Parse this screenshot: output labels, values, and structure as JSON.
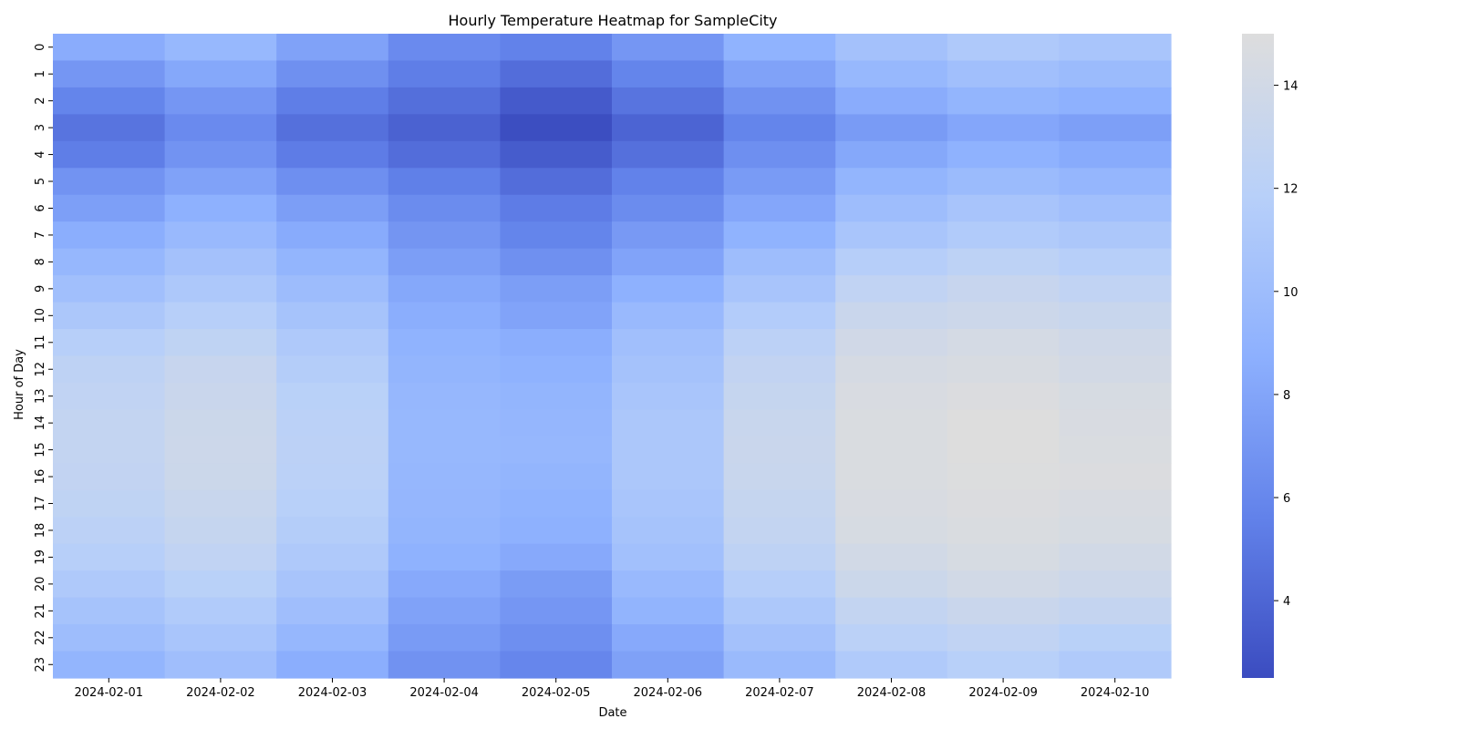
{
  "chart_data": {
    "type": "heatmap",
    "title": "Hourly Temperature Heatmap for SampleCity",
    "xlabel": "Date",
    "ylabel": "Hour of Day",
    "x": [
      "2024-02-01",
      "2024-02-02",
      "2024-02-03",
      "2024-02-04",
      "2024-02-05",
      "2024-02-06",
      "2024-02-07",
      "2024-02-08",
      "2024-02-09",
      "2024-02-10"
    ],
    "y": [
      "0",
      "1",
      "2",
      "3",
      "4",
      "5",
      "6",
      "7",
      "8",
      "9",
      "10",
      "11",
      "12",
      "13",
      "14",
      "15",
      "16",
      "17",
      "18",
      "19",
      "20",
      "21",
      "22",
      "23"
    ],
    "values": [
      [
        8.5,
        9.5,
        7.8,
        6.2,
        5.6,
        7.0,
        9.0,
        10.4,
        11.2,
        10.8
      ],
      [
        7.0,
        8.2,
        6.6,
        5.4,
        4.4,
        5.8,
        7.8,
        9.5,
        10.2,
        9.8
      ],
      [
        5.8,
        7.0,
        5.4,
        4.5,
        3.3,
        4.8,
        6.7,
        8.5,
        9.2,
        8.8
      ],
      [
        4.8,
        6.2,
        4.6,
        3.8,
        2.6,
        3.9,
        5.8,
        7.3,
        8.1,
        7.6
      ],
      [
        5.4,
        6.8,
        5.3,
        4.4,
        3.4,
        4.6,
        6.5,
        8.2,
        8.9,
        8.4
      ],
      [
        6.8,
        7.8,
        6.5,
        5.5,
        4.4,
        5.6,
        7.3,
        9.2,
        9.8,
        9.3
      ],
      [
        7.6,
        8.8,
        7.5,
        6.3,
        5.3,
        6.3,
        8.1,
        10.0,
        10.7,
        10.2
      ],
      [
        8.6,
        9.6,
        8.4,
        6.9,
        5.8,
        7.2,
        9.0,
        10.8,
        11.4,
        11.0
      ],
      [
        9.4,
        10.4,
        9.2,
        7.5,
        6.6,
        7.9,
        10.0,
        11.7,
        12.3,
        11.8
      ],
      [
        10.2,
        11.1,
        9.9,
        8.2,
        7.5,
        8.8,
        10.7,
        12.6,
        13.1,
        12.6
      ],
      [
        11.0,
        11.8,
        10.6,
        8.6,
        7.9,
        9.6,
        11.5,
        13.3,
        13.6,
        13.2
      ],
      [
        11.8,
        12.5,
        11.2,
        9.0,
        8.6,
        10.2,
        12.2,
        13.9,
        14.2,
        13.8
      ],
      [
        12.4,
        13.1,
        11.6,
        9.2,
        8.9,
        10.5,
        12.7,
        14.3,
        14.5,
        14.1
      ],
      [
        12.6,
        13.3,
        12.0,
        9.4,
        9.2,
        10.8,
        13.0,
        14.6,
        14.8,
        14.4
      ],
      [
        12.8,
        13.5,
        12.1,
        9.5,
        9.3,
        11.0,
        13.2,
        14.7,
        15.0,
        14.6
      ],
      [
        12.8,
        13.6,
        12.2,
        9.5,
        9.4,
        11.0,
        13.3,
        14.7,
        15.0,
        14.7
      ],
      [
        12.7,
        13.5,
        12.1,
        9.4,
        9.2,
        11.0,
        13.2,
        14.7,
        14.9,
        14.8
      ],
      [
        12.5,
        13.2,
        11.9,
        9.3,
        9.0,
        10.8,
        13.0,
        14.6,
        14.8,
        14.6
      ],
      [
        12.2,
        13.0,
        11.6,
        9.2,
        8.8,
        10.6,
        12.8,
        14.4,
        14.7,
        14.4
      ],
      [
        11.8,
        12.6,
        11.2,
        8.9,
        8.3,
        10.3,
        12.4,
        14.0,
        14.4,
        14.0
      ],
      [
        11.2,
        12.0,
        10.7,
        8.3,
        7.4,
        9.6,
        11.7,
        13.5,
        14.0,
        13.6
      ],
      [
        10.6,
        11.4,
        10.1,
        7.8,
        7.0,
        9.1,
        11.1,
        12.8,
        13.3,
        12.9
      ],
      [
        10.0,
        10.8,
        9.4,
        7.3,
        6.5,
        8.3,
        10.4,
        12.1,
        12.6,
        12.0
      ],
      [
        9.2,
        10.1,
        8.6,
        6.7,
        5.9,
        7.7,
        9.7,
        11.3,
        11.9,
        11.3
      ]
    ],
    "colorbar": {
      "min": 2.5,
      "max": 15.0,
      "ticks": [
        4,
        6,
        8,
        10,
        12,
        14
      ]
    },
    "colormap": "coolwarm (lower half)",
    "grid": false
  }
}
